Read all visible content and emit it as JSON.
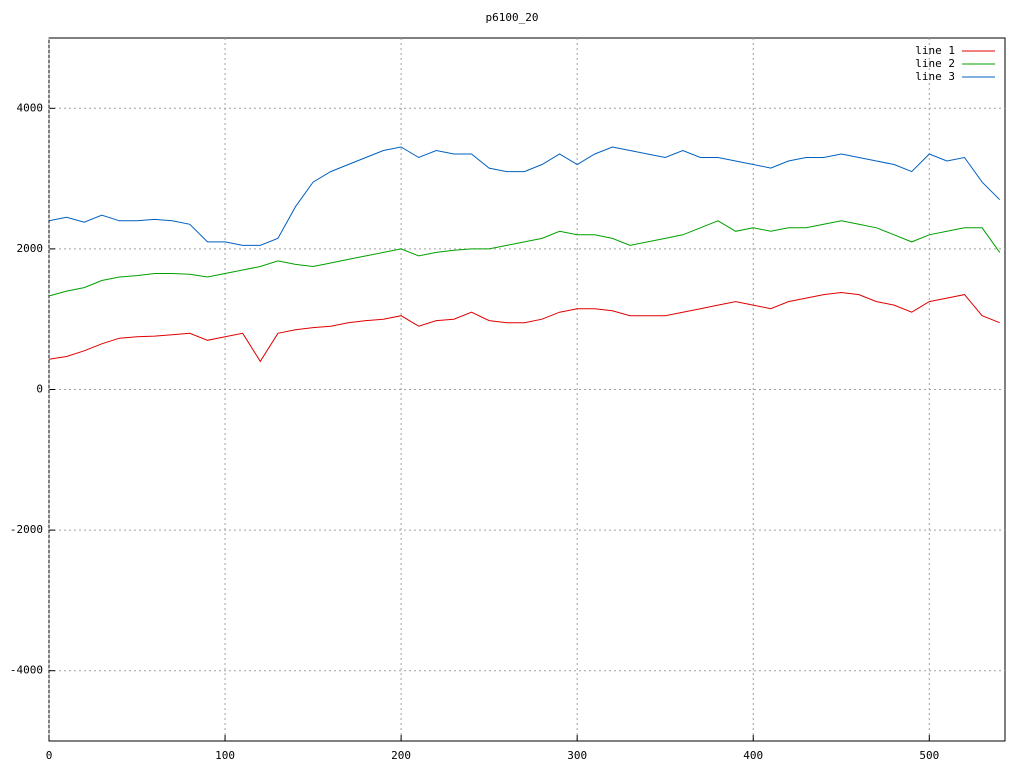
{
  "chart_data": {
    "type": "line",
    "title": "p6100_20",
    "x": [
      0,
      10,
      20,
      30,
      40,
      50,
      60,
      70,
      80,
      90,
      100,
      110,
      120,
      130,
      140,
      150,
      160,
      170,
      180,
      190,
      200,
      210,
      220,
      230,
      240,
      250,
      260,
      270,
      280,
      290,
      300,
      310,
      320,
      330,
      340,
      350,
      360,
      370,
      380,
      390,
      400,
      410,
      420,
      430,
      440,
      450,
      460,
      470,
      480,
      490,
      500,
      510,
      520,
      530,
      540
    ],
    "series": [
      {
        "name": "line 1",
        "color": "#e00000",
        "values": [
          430,
          470,
          550,
          650,
          730,
          750,
          760,
          780,
          800,
          700,
          750,
          800,
          400,
          800,
          850,
          880,
          900,
          950,
          980,
          1000,
          1050,
          900,
          980,
          1000,
          1100,
          980,
          950,
          950,
          1000,
          1100,
          1150,
          1150,
          1120,
          1050,
          1050,
          1050,
          1100,
          1150,
          1200,
          1250,
          1200,
          1150,
          1250,
          1300,
          1350,
          1380,
          1350,
          1250,
          1200,
          1100,
          1250,
          1300,
          1350,
          1050,
          950
        ]
      },
      {
        "name": "line 2",
        "color": "#00a000",
        "values": [
          1330,
          1400,
          1450,
          1550,
          1600,
          1620,
          1650,
          1650,
          1640,
          1600,
          1650,
          1700,
          1750,
          1830,
          1780,
          1750,
          1800,
          1850,
          1900,
          1950,
          2000,
          1900,
          1950,
          1980,
          2000,
          2000,
          2050,
          2100,
          2150,
          2250,
          2200,
          2200,
          2150,
          2050,
          2100,
          2150,
          2200,
          2300,
          2400,
          2250,
          2300,
          2250,
          2300,
          2300,
          2350,
          2400,
          2350,
          2300,
          2200,
          2100,
          2200,
          2250,
          2300,
          2300,
          1950
        ]
      },
      {
        "name": "line 3",
        "color": "#0060c0",
        "values": [
          2400,
          2450,
          2380,
          2480,
          2400,
          2400,
          2420,
          2400,
          2350,
          2100,
          2100,
          2050,
          2050,
          2150,
          2600,
          2950,
          3100,
          3200,
          3300,
          3400,
          3450,
          3300,
          3400,
          3350,
          3350,
          3150,
          3100,
          3100,
          3200,
          3350,
          3200,
          3350,
          3450,
          3400,
          3350,
          3300,
          3400,
          3300,
          3300,
          3250,
          3200,
          3150,
          3250,
          3300,
          3300,
          3350,
          3300,
          3250,
          3200,
          3100,
          3350,
          3250,
          3300,
          2950,
          2700
        ]
      }
    ],
    "xlim": [
      0,
      543
    ],
    "ylim": [
      -5000,
      5000
    ],
    "xticks": [
      0,
      100,
      200,
      300,
      400,
      500
    ],
    "yticks": [
      -4000,
      -2000,
      0,
      2000,
      4000
    ],
    "grid": true,
    "legend": "top-right"
  }
}
